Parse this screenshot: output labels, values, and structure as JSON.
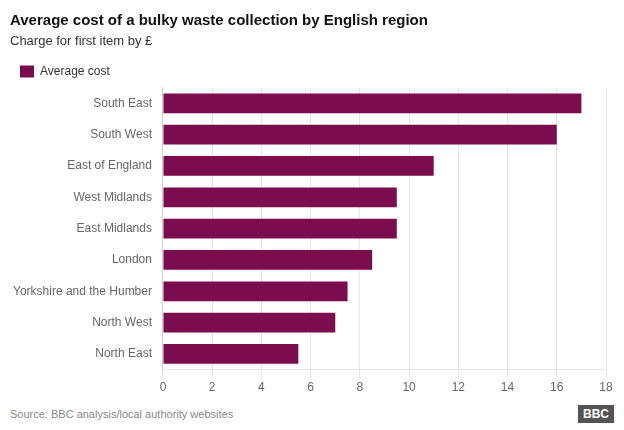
{
  "chart_data": {
    "type": "bar",
    "orientation": "horizontal",
    "title": "Average cost of a bulky waste collection by English region",
    "subtitle": "Charge for first item by £",
    "source": "Source: BBC analysis/local authority websites",
    "annotations": [
      "BBC"
    ],
    "categories": [
      "South East",
      "South West",
      "East of England",
      "West Midlands",
      "East Midlands",
      "London",
      "Yorkshire and the Humber",
      "North West",
      "North East"
    ],
    "series": [
      {
        "name": "Average cost",
        "color": "#7B0D4E",
        "values": [
          17.0,
          16.0,
          11.0,
          9.5,
          9.5,
          8.5,
          7.5,
          7.0,
          5.5
        ]
      }
    ],
    "xlim": [
      0,
      18
    ],
    "xticks": [
      0,
      2,
      4,
      6,
      8,
      10,
      12,
      14,
      16,
      18
    ],
    "grid": true,
    "legend": "top"
  }
}
